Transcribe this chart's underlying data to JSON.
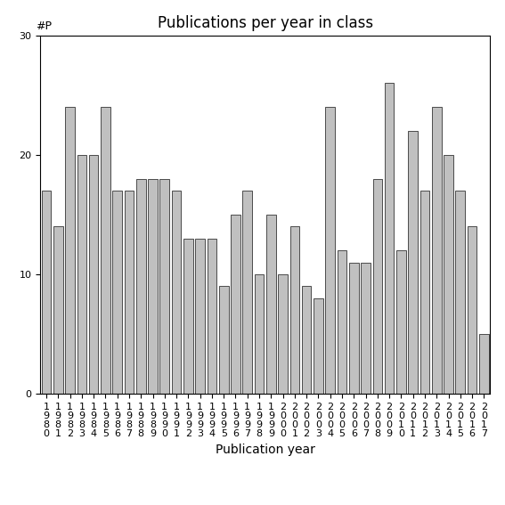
{
  "years": [
    "1980",
    "1981",
    "1982",
    "1983",
    "1984",
    "1985",
    "1986",
    "1987",
    "1988",
    "1989",
    "1990",
    "1991",
    "1992",
    "1993",
    "1994",
    "1995",
    "1996",
    "1997",
    "1998",
    "1999",
    "2000",
    "2001",
    "2002",
    "2003",
    "2004",
    "2005",
    "2006",
    "2007",
    "2008",
    "2009",
    "2010",
    "2011",
    "2012",
    "2013",
    "2014",
    "2015",
    "2016",
    "2017"
  ],
  "values": [
    17,
    14,
    24,
    20,
    20,
    24,
    17,
    17,
    18,
    18,
    18,
    17,
    13,
    13,
    13,
    9,
    15,
    17,
    10,
    15,
    10,
    14,
    9,
    8,
    24,
    12,
    11,
    11,
    18,
    26,
    12,
    22,
    17,
    24,
    20,
    17,
    14,
    5
  ],
  "bar_color": "#c0c0c0",
  "bar_edgecolor": "#333333",
  "title": "Publications per year in class",
  "xlabel": "Publication year",
  "ylabel_text": "#P",
  "ylim": [
    0,
    30
  ],
  "yticks": [
    0,
    10,
    20,
    30
  ],
  "title_fontsize": 12,
  "label_fontsize": 10,
  "tick_fontsize": 8,
  "background_color": "#ffffff"
}
